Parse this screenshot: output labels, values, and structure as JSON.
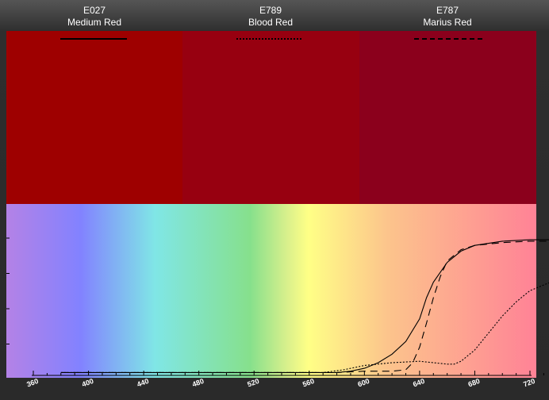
{
  "filters": [
    {
      "code": "E027",
      "name": "Medium Red",
      "color": "#9e0000",
      "line_style": "solid"
    },
    {
      "code": "E789",
      "name": "Blood Red",
      "color": "#970010",
      "line_style": "dotted"
    },
    {
      "code": "E787",
      "name": "Marius Red",
      "color": "#8b001c",
      "line_style": "dashed"
    }
  ],
  "chart_data": {
    "type": "line",
    "title": "",
    "xlabel": "",
    "ylabel": "",
    "xlim": [
      360,
      740
    ],
    "ylim": [
      0,
      100
    ],
    "x_ticks": [
      360,
      400,
      440,
      480,
      520,
      560,
      600,
      640,
      680,
      720
    ],
    "background": "visible spectrum gradient",
    "series": [
      {
        "name": "Medium Red",
        "style": "solid",
        "x": [
          380,
          420,
          500,
          580,
          590,
          600,
          610,
          620,
          630,
          640,
          645,
          650,
          660,
          670,
          680,
          700,
          720,
          735
        ],
        "y": [
          2,
          2,
          2,
          2,
          3,
          5,
          9,
          15,
          24,
          40,
          55,
          66,
          80,
          88,
          92,
          95,
          96,
          96
        ]
      },
      {
        "name": "Blood Red",
        "style": "dotted",
        "x": [
          380,
          420,
          500,
          570,
          585,
          600,
          620,
          640,
          650,
          660,
          665,
          670,
          680,
          690,
          700,
          710,
          720,
          735
        ],
        "y": [
          2,
          2,
          2,
          2,
          4,
          7,
          9,
          10,
          9,
          8,
          8,
          10,
          18,
          30,
          42,
          52,
          60,
          66
        ]
      },
      {
        "name": "Marius Red",
        "style": "dashed",
        "x": [
          380,
          420,
          500,
          580,
          600,
          620,
          630,
          635,
          640,
          645,
          650,
          655,
          660,
          670,
          680,
          700,
          720,
          735
        ],
        "y": [
          2,
          2,
          2,
          2,
          3,
          3,
          4,
          9,
          20,
          37,
          55,
          70,
          81,
          89,
          92,
          94,
          95,
          95
        ]
      }
    ]
  }
}
